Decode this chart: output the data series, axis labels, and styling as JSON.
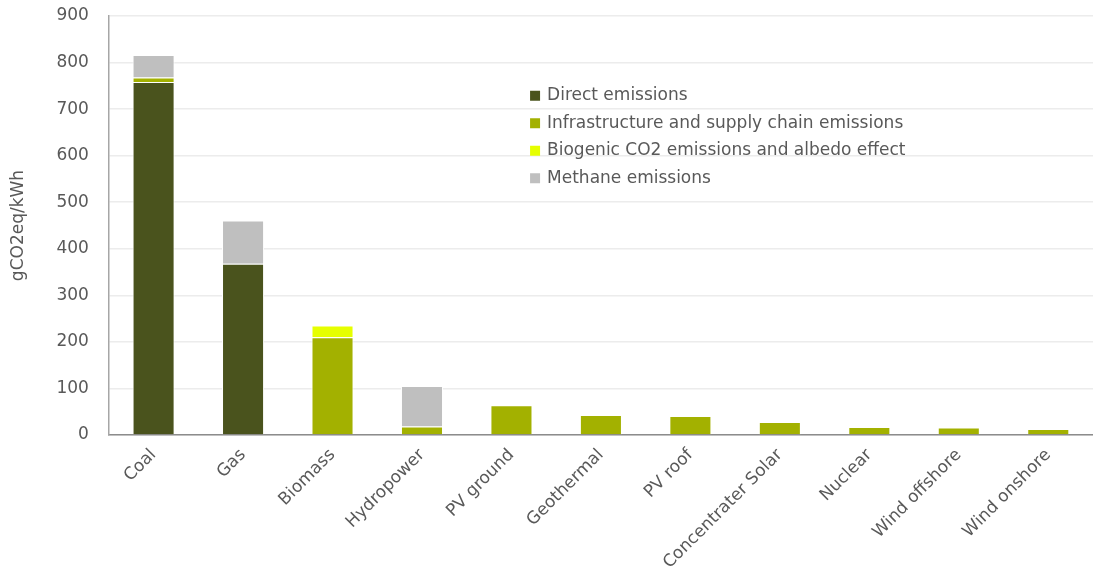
{
  "chart_data": {
    "type": "bar",
    "stacked": true,
    "ylabel": "gCO2eq/kWh",
    "categories": [
      "Coal",
      "Gas",
      "Biomass",
      "Hydropower",
      "PV ground",
      "Geothermal",
      "PV roof",
      "Concentrater Solar",
      "Nuclear",
      "Wind offshore",
      "Wind onshore"
    ],
    "series": [
      {
        "name": "Direct emissions",
        "color": "#4a531d",
        "values": [
          758,
          368,
          null,
          null,
          null,
          null,
          null,
          null,
          null,
          null,
          null
        ]
      },
      {
        "name": "Infrastructure and supply chain emissions",
        "color": "#a3b100",
        "values": [
          10,
          null,
          210,
          18,
          64,
          43,
          41,
          28,
          17,
          16,
          13
        ]
      },
      {
        "name": "Biogenic CO2 emissions and albedo effect",
        "color": "#e6ff00",
        "values": [
          null,
          null,
          25,
          null,
          null,
          null,
          null,
          null,
          null,
          null,
          null
        ]
      },
      {
        "name": "Methane emissions",
        "color": "#bfbfbf",
        "values": [
          48,
          93,
          null,
          87,
          null,
          null,
          null,
          null,
          null,
          null,
          null
        ]
      }
    ],
    "ylim": [
      0,
      900
    ],
    "yticks": [
      0,
      100,
      200,
      300,
      400,
      500,
      600,
      700,
      800,
      900
    ],
    "grid": "y",
    "legend": "top"
  }
}
